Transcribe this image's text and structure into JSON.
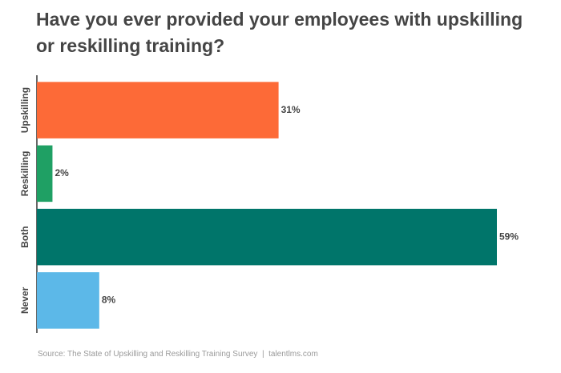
{
  "chart_data": {
    "type": "bar",
    "orientation": "horizontal",
    "title": "Have you ever provided your employees with upskilling or reskilling training?",
    "categories": [
      "Upskilling",
      "Reskilling",
      "Both",
      "Never"
    ],
    "values": [
      31,
      2,
      59,
      8
    ],
    "value_labels": [
      "31%",
      "2%",
      "59%",
      "8%"
    ],
    "colors": [
      "#fd6a37",
      "#1fa064",
      "#00756a",
      "#5cb8e8"
    ],
    "source": "Source: The State of Upskilling and Reskilling Training Survey  |  talentlms.com"
  }
}
